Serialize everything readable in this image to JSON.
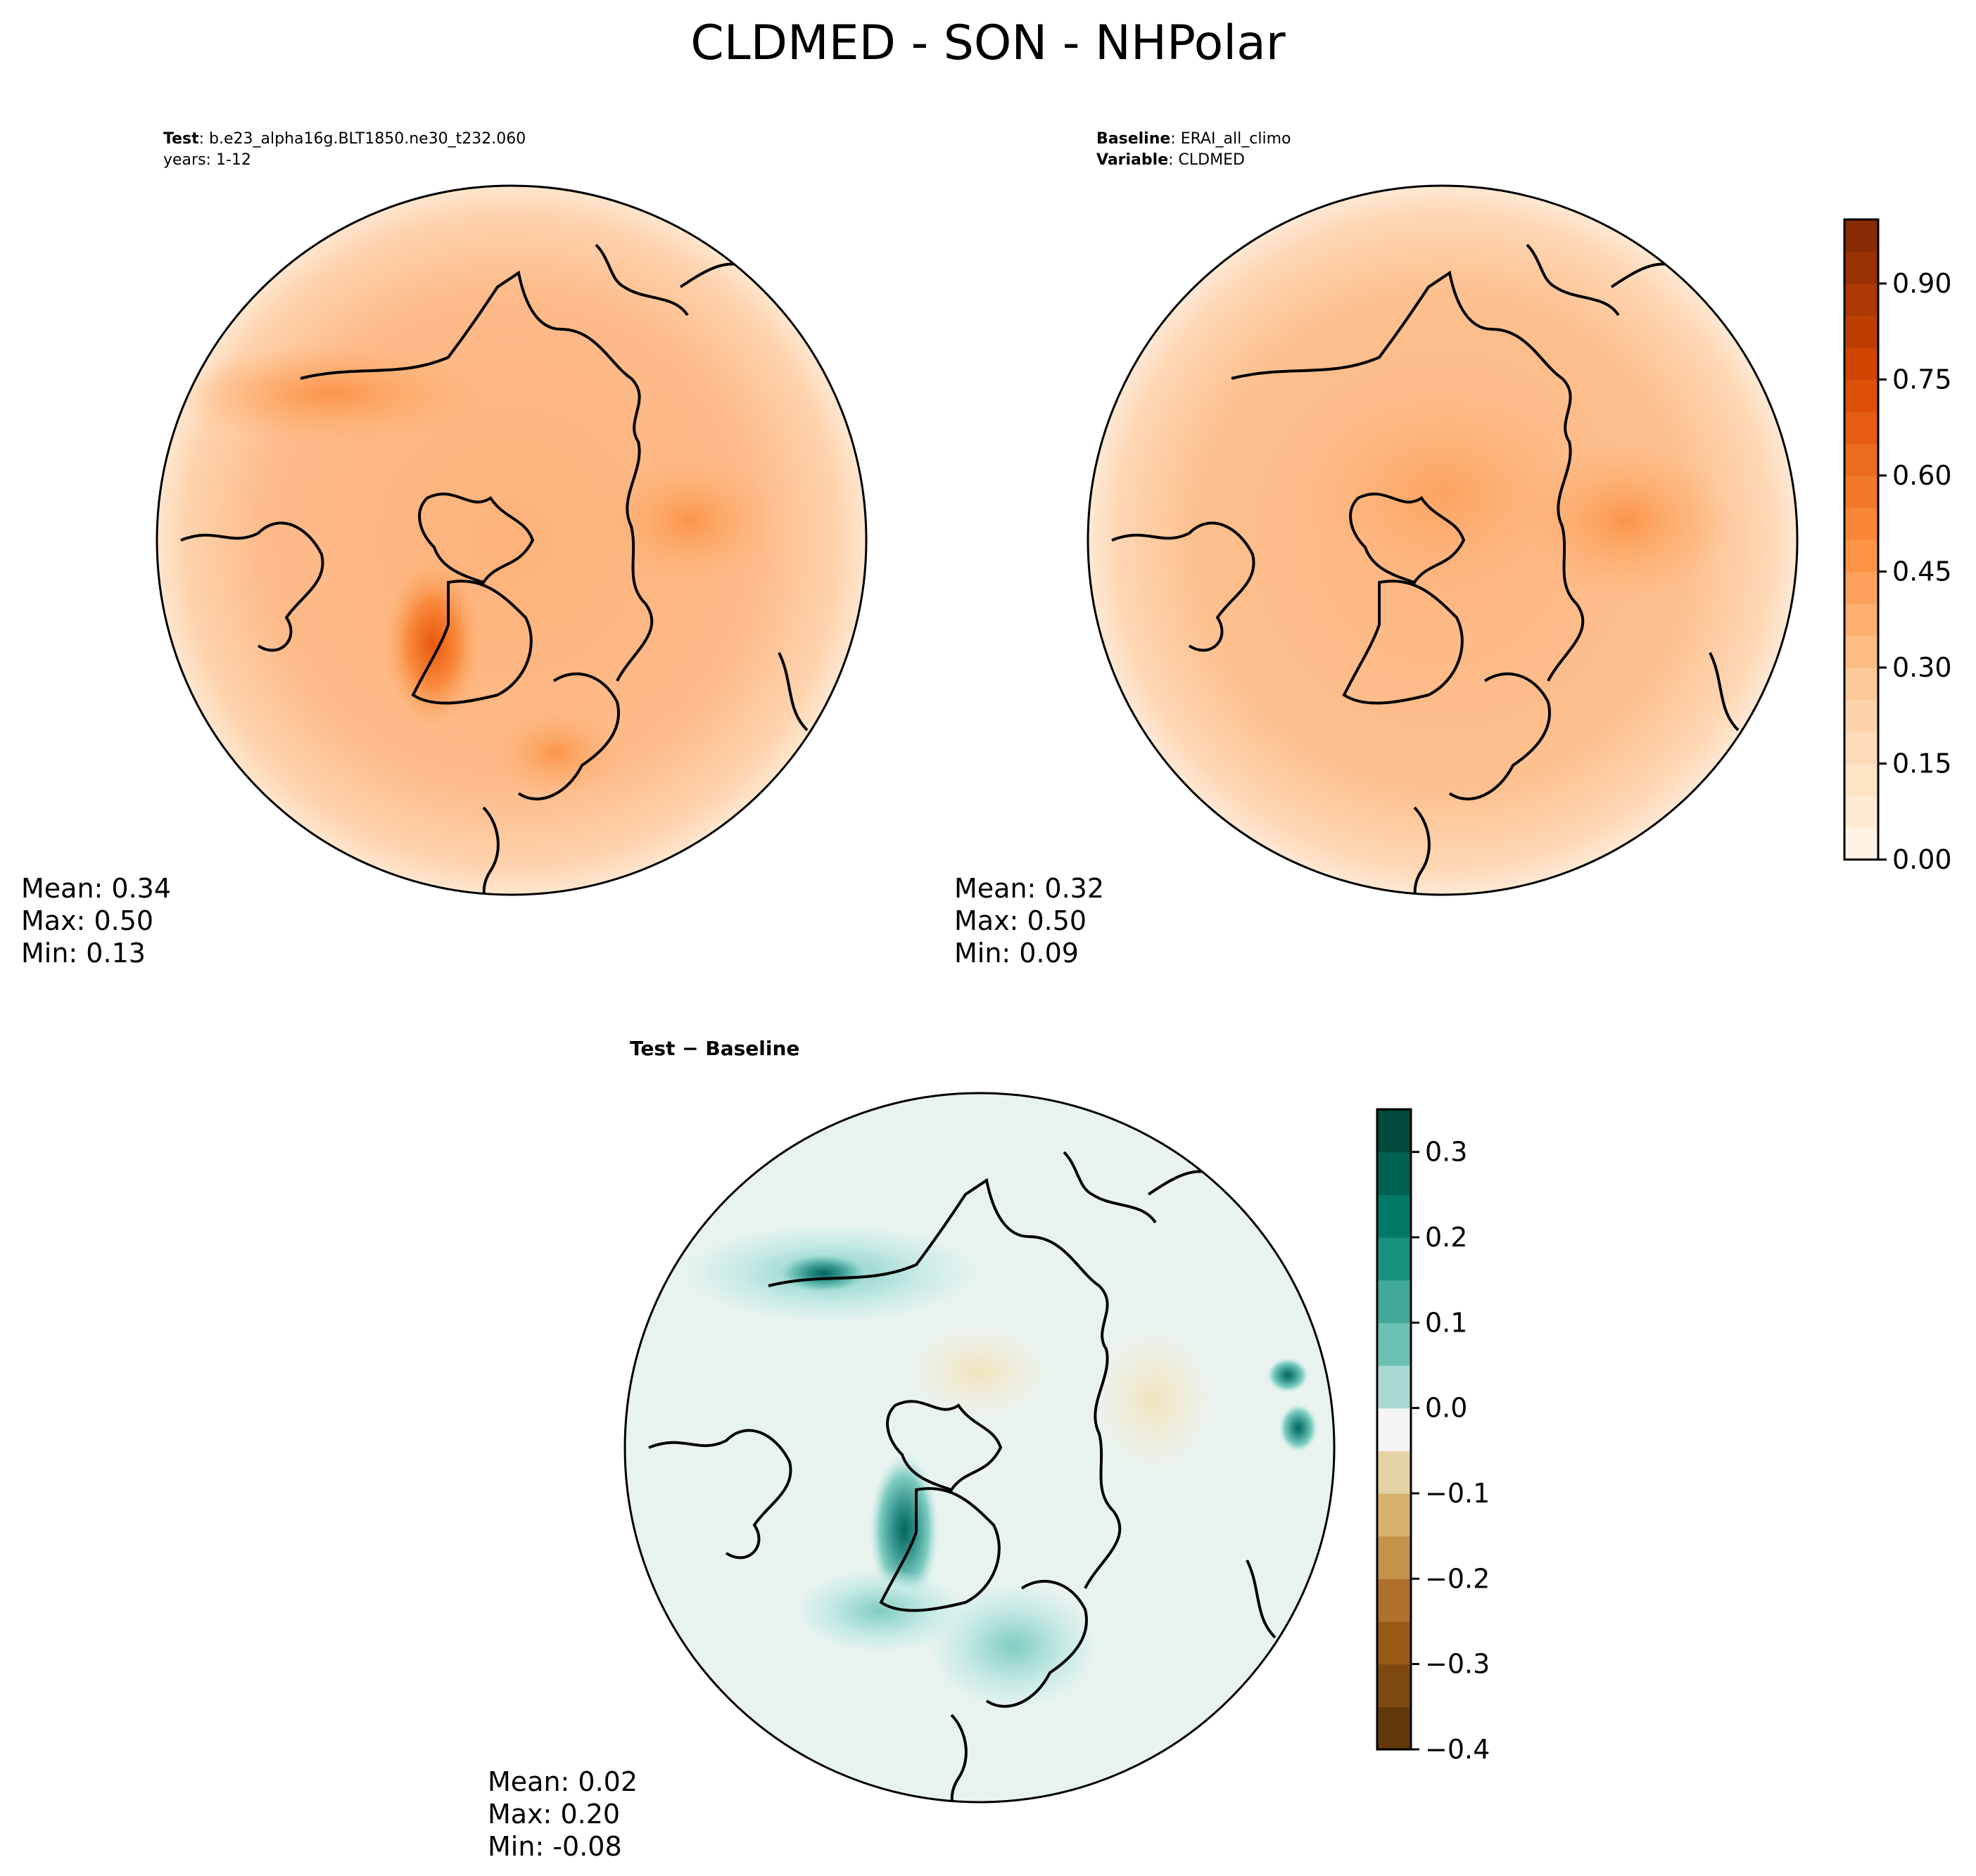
{
  "title": "CLDMED - SON - NHPolar",
  "panels": {
    "test": {
      "label_key": "Test",
      "label_value": "b.e23_alpha16g.BLT1850.ne30_t232.060",
      "line2": "years: 1-12",
      "stats": {
        "mean": "Mean:  0.34",
        "max": "Max:  0.50",
        "min": "Min:  0.13"
      }
    },
    "baseline": {
      "label_key": "Baseline",
      "label_value": "ERAI_all_climo",
      "line2_key": "Variable",
      "line2_value": "CLDMED",
      "stats": {
        "mean": "Mean:  0.32",
        "max": "Max:  0.50",
        "min": "Min:  0.09"
      }
    },
    "diff": {
      "title": "Test − Baseline",
      "stats": {
        "mean": "Mean:  0.02",
        "max": "Max:  0.20",
        "min": "Min: -0.08"
      }
    }
  },
  "colorbar_main": {
    "colormap": "Oranges",
    "range": [
      0.0,
      1.0
    ],
    "levels": 20,
    "ticks": [
      {
        "value": 0.0,
        "label": "0.00"
      },
      {
        "value": 0.15,
        "label": "0.15"
      },
      {
        "value": 0.3,
        "label": "0.30"
      },
      {
        "value": 0.45,
        "label": "0.45"
      },
      {
        "value": 0.6,
        "label": "0.60"
      },
      {
        "value": 0.75,
        "label": "0.75"
      },
      {
        "value": 0.9,
        "label": "0.90"
      }
    ]
  },
  "colorbar_diff": {
    "colormap": "BrBG",
    "range": [
      -0.4,
      0.35
    ],
    "ticks": [
      {
        "value": -0.4,
        "label": "−0.4"
      },
      {
        "value": -0.3,
        "label": "−0.3"
      },
      {
        "value": -0.2,
        "label": "−0.2"
      },
      {
        "value": -0.1,
        "label": "−0.1"
      },
      {
        "value": 0.0,
        "label": "0.0"
      },
      {
        "value": 0.1,
        "label": "0.1"
      },
      {
        "value": 0.2,
        "label": "0.2"
      },
      {
        "value": 0.3,
        "label": "0.3"
      }
    ]
  },
  "map": {
    "projection": "north-polar-stereographic",
    "region": "NHPolar",
    "coastlines": true
  },
  "colors": {
    "oranges_light": "#fee6ce",
    "oranges_mid": "#fdae6b",
    "oranges_dark": "#7f2704",
    "brbg_green": "#01665e",
    "brbg_neutral": "#e8f3f0",
    "brbg_brown": "#8c510a"
  }
}
